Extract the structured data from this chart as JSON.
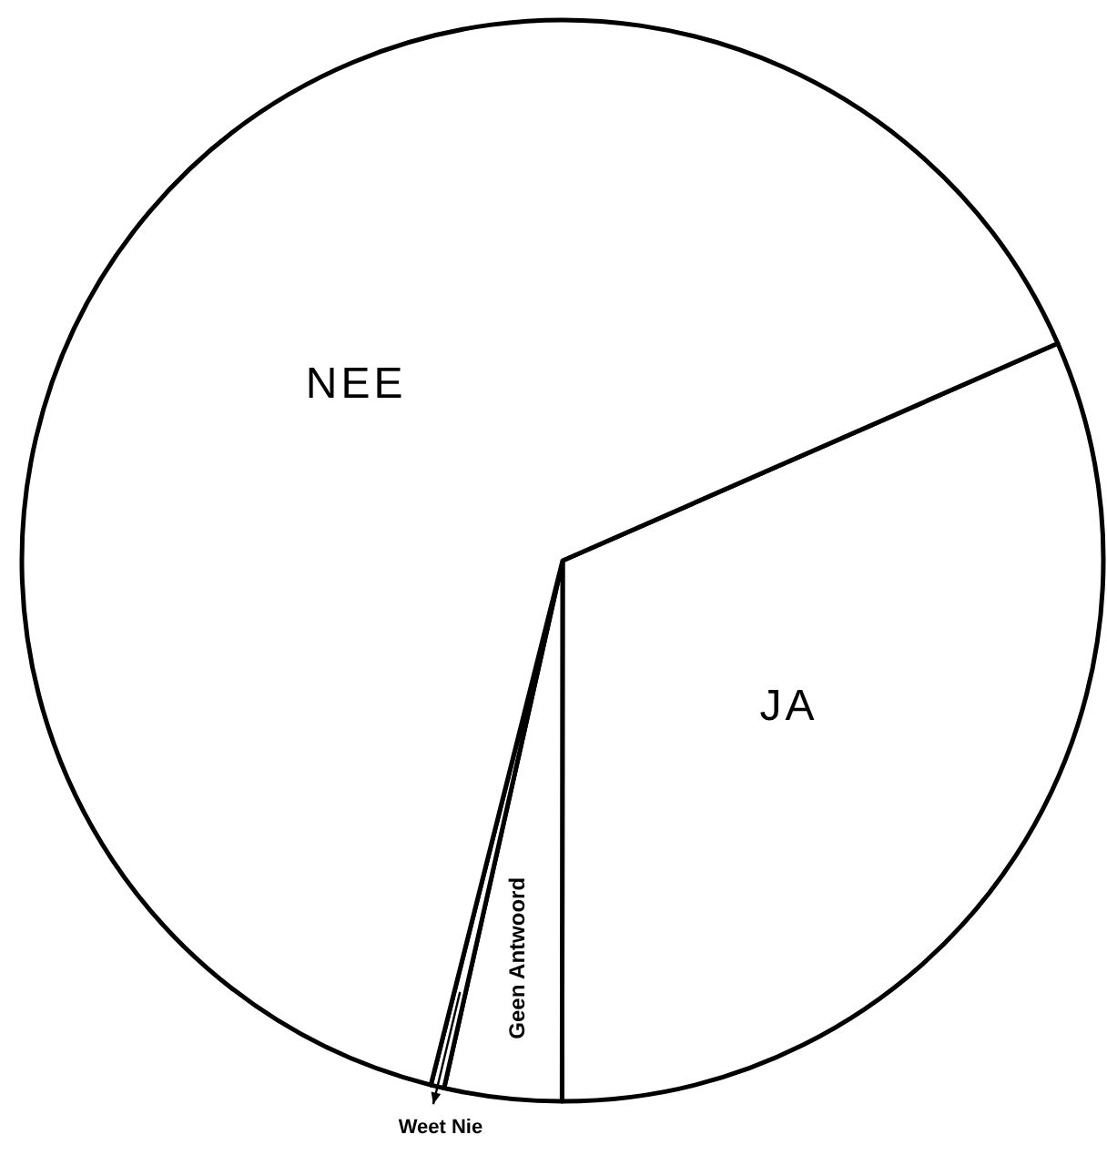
{
  "chart_data": {
    "type": "pie",
    "categories": [
      "JA",
      "Geen Antwoord",
      "Weet Nie",
      "NEE"
    ],
    "values": [
      31.6,
      3.5,
      0.4,
      64.5
    ],
    "colors": [
      "#ffffff",
      "#ffffff",
      "#ffffff",
      "#ffffff"
    ]
  }
}
